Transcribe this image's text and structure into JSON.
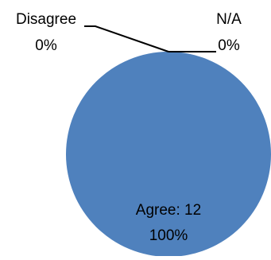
{
  "chart_data": {
    "type": "pie",
    "slices": [
      {
        "label": "Agree",
        "value": 12,
        "percent": "100%",
        "data_label_line1": "Agree: 12",
        "data_label_line2": "100%",
        "color": "#4F81BD"
      },
      {
        "label": "Disagree",
        "value": 0,
        "percent": "0%",
        "data_label_line1": "Disagree",
        "data_label_line2": "0%",
        "color": "#4F81BD"
      },
      {
        "label": "N/A",
        "value": 0,
        "percent": "0%",
        "data_label_line1": "N/A",
        "data_label_line2": "0%",
        "color": "#4F81BD"
      }
    ],
    "legend": "none",
    "leader_line_color": "#000000"
  }
}
